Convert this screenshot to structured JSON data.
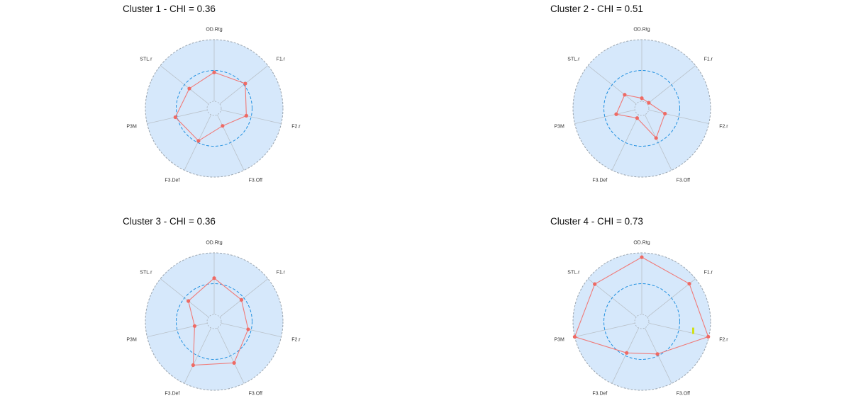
{
  "colors": {
    "panel_fill": "#d6e8fb",
    "panel_border": "#9aa4ae",
    "spoke": "#b9c1c9",
    "reference_ring": "#1f8fe0",
    "inner_ring": "#a8b0b8",
    "series_line": "#f07a78",
    "series_point": "#ee6a64",
    "marker": "#cfe019"
  },
  "chart_data": [
    {
      "type": "radar",
      "title": "Cluster 1 - CHI = 0.36",
      "axes": [
        "OD.Rtg",
        "F1.r",
        "F2.r",
        "F3.Off",
        "F3.Def",
        "P3M",
        "STL.r"
      ],
      "range": [
        0,
        1
      ],
      "reference_ring": 0.5,
      "grid": true,
      "values": [
        0.47,
        0.53,
        0.42,
        0.2,
        0.47,
        0.53,
        0.4
      ]
    },
    {
      "type": "radar",
      "title": "Cluster 2 - CHI = 0.51",
      "axes": [
        "OD.Rtg",
        "F1.r",
        "F2.r",
        "F3.Off",
        "F3.Def",
        "P3M",
        "STL.r"
      ],
      "range": [
        0,
        1
      ],
      "reference_ring": 0.5,
      "grid": true,
      "values": [
        0.05,
        0.03,
        0.27,
        0.42,
        0.06,
        0.31,
        0.24
      ]
    },
    {
      "type": "radar",
      "title": "Cluster 3 - CHI = 0.36",
      "axes": [
        "OD.Rtg",
        "F1.r",
        "F2.r",
        "F3.Off",
        "F3.Def",
        "P3M",
        "STL.r"
      ],
      "range": [
        0,
        1
      ],
      "reference_ring": 0.5,
      "grid": true,
      "values": [
        0.59,
        0.45,
        0.45,
        0.63,
        0.67,
        0.21,
        0.42
      ]
    },
    {
      "type": "radar",
      "title": "Cluster 4 - CHI = 0.73",
      "axes": [
        "OD.Rtg",
        "F1.r",
        "F2.r",
        "F3.Off",
        "F3.Def",
        "P3M",
        "STL.r"
      ],
      "range": [
        0,
        1
      ],
      "reference_ring": 0.5,
      "grid": true,
      "values": [
        0.93,
        0.87,
        0.99,
        0.47,
        0.45,
        1.0,
        0.86
      ],
      "marker_on_axis": "F2.r"
    }
  ]
}
